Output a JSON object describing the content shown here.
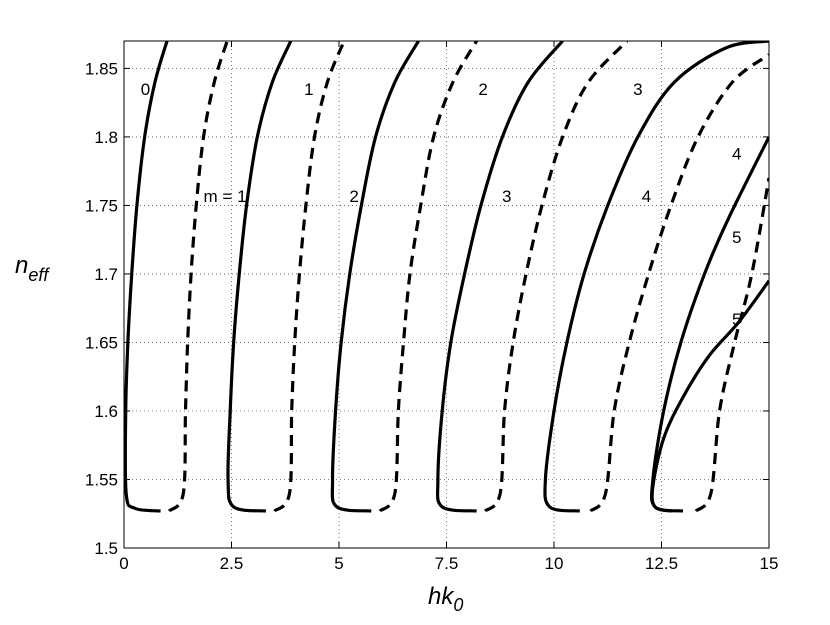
{
  "chart_data": {
    "type": "line",
    "title": "",
    "xlabel": {
      "main": "hk",
      "sub": "0"
    },
    "ylabel": {
      "main": "n",
      "sub": "eff"
    },
    "xlim": [
      0,
      15
    ],
    "ylim": [
      1.5,
      1.87
    ],
    "grid": true,
    "xticks": [
      0,
      2.5,
      5,
      7.5,
      10,
      12.5,
      15
    ],
    "xtick_labels": [
      "0",
      "2.5",
      "5",
      "7.5",
      "10",
      "12.5",
      "15"
    ],
    "yticks": [
      1.5,
      1.55,
      1.6,
      1.65,
      1.7,
      1.75,
      1.8,
      1.85
    ],
    "ytick_labels": [
      "1.5",
      "1.55",
      "1.6",
      "1.65",
      "1.7",
      "1.75",
      "1.8",
      "1.85"
    ],
    "series": [
      {
        "style": "solid",
        "points": [
          [
            0.85,
            1.527
          ],
          [
            0.25,
            1.529
          ],
          [
            0.05,
            1.54
          ],
          [
            0.04,
            1.6
          ],
          [
            0.09,
            1.65
          ],
          [
            0.18,
            1.7
          ],
          [
            0.3,
            1.75
          ],
          [
            0.48,
            1.8
          ],
          [
            0.72,
            1.84
          ],
          [
            1.0,
            1.87
          ]
        ]
      },
      {
        "style": "dashed",
        "points": [
          [
            1.05,
            1.527
          ],
          [
            1.38,
            1.54
          ],
          [
            1.43,
            1.6
          ],
          [
            1.48,
            1.65
          ],
          [
            1.56,
            1.7
          ],
          [
            1.68,
            1.75
          ],
          [
            1.85,
            1.8
          ],
          [
            2.1,
            1.84
          ],
          [
            2.4,
            1.87
          ]
        ]
      },
      {
        "style": "solid",
        "points": [
          [
            3.3,
            1.527
          ],
          [
            2.55,
            1.53
          ],
          [
            2.42,
            1.55
          ],
          [
            2.47,
            1.6
          ],
          [
            2.55,
            1.65
          ],
          [
            2.68,
            1.7
          ],
          [
            2.85,
            1.75
          ],
          [
            3.1,
            1.8
          ],
          [
            3.45,
            1.84
          ],
          [
            3.88,
            1.87
          ]
        ]
      },
      {
        "style": "dashed",
        "points": [
          [
            3.5,
            1.527
          ],
          [
            3.85,
            1.54
          ],
          [
            3.9,
            1.6
          ],
          [
            3.97,
            1.65
          ],
          [
            4.08,
            1.7
          ],
          [
            4.23,
            1.75
          ],
          [
            4.43,
            1.8
          ],
          [
            4.73,
            1.84
          ],
          [
            5.12,
            1.87
          ]
        ]
      },
      {
        "style": "solid",
        "points": [
          [
            5.75,
            1.527
          ],
          [
            4.95,
            1.53
          ],
          [
            4.85,
            1.55
          ],
          [
            4.92,
            1.6
          ],
          [
            5.05,
            1.65
          ],
          [
            5.25,
            1.7
          ],
          [
            5.52,
            1.75
          ],
          [
            5.85,
            1.8
          ],
          [
            6.3,
            1.84
          ],
          [
            6.85,
            1.87
          ]
        ]
      },
      {
        "style": "dashed",
        "points": [
          [
            5.95,
            1.527
          ],
          [
            6.3,
            1.54
          ],
          [
            6.38,
            1.6
          ],
          [
            6.5,
            1.65
          ],
          [
            6.65,
            1.7
          ],
          [
            6.9,
            1.75
          ],
          [
            7.2,
            1.8
          ],
          [
            7.65,
            1.84
          ],
          [
            8.2,
            1.87
          ]
        ]
      },
      {
        "style": "solid",
        "points": [
          [
            8.2,
            1.527
          ],
          [
            7.4,
            1.53
          ],
          [
            7.3,
            1.55
          ],
          [
            7.4,
            1.6
          ],
          [
            7.6,
            1.65
          ],
          [
            7.92,
            1.7
          ],
          [
            8.3,
            1.75
          ],
          [
            8.8,
            1.8
          ],
          [
            9.4,
            1.84
          ],
          [
            10.2,
            1.87
          ]
        ]
      },
      {
        "style": "dashed",
        "points": [
          [
            8.4,
            1.527
          ],
          [
            8.75,
            1.54
          ],
          [
            8.85,
            1.6
          ],
          [
            9.05,
            1.65
          ],
          [
            9.35,
            1.7
          ],
          [
            9.72,
            1.75
          ],
          [
            10.2,
            1.8
          ],
          [
            10.8,
            1.84
          ],
          [
            11.7,
            1.87
          ]
        ]
      },
      {
        "style": "solid",
        "points": [
          [
            10.6,
            1.527
          ],
          [
            9.9,
            1.53
          ],
          [
            9.8,
            1.55
          ],
          [
            10.0,
            1.6
          ],
          [
            10.3,
            1.65
          ],
          [
            10.7,
            1.7
          ],
          [
            11.25,
            1.75
          ],
          [
            11.95,
            1.8
          ],
          [
            12.8,
            1.84
          ],
          [
            14.0,
            1.865
          ],
          [
            15.0,
            1.87
          ]
        ]
      },
      {
        "style": "dashed",
        "points": [
          [
            10.85,
            1.527
          ],
          [
            11.2,
            1.54
          ],
          [
            11.4,
            1.6
          ],
          [
            11.75,
            1.65
          ],
          [
            12.2,
            1.7
          ],
          [
            12.72,
            1.75
          ],
          [
            13.35,
            1.8
          ],
          [
            14.15,
            1.84
          ],
          [
            15.0,
            1.86
          ]
        ]
      },
      {
        "style": "solid",
        "points": [
          [
            13.0,
            1.527
          ],
          [
            12.35,
            1.53
          ],
          [
            12.3,
            1.55
          ],
          [
            12.55,
            1.6
          ],
          [
            12.95,
            1.65
          ],
          [
            13.5,
            1.7
          ],
          [
            14.05,
            1.74
          ],
          [
            15.0,
            1.8
          ]
        ]
      },
      {
        "style": "dashed",
        "points": [
          [
            13.3,
            1.527
          ],
          [
            13.65,
            1.54
          ],
          [
            13.85,
            1.6
          ],
          [
            14.2,
            1.65
          ],
          [
            14.6,
            1.7
          ],
          [
            15.0,
            1.77
          ]
        ]
      },
      {
        "style": "solid",
        "points": [
          [
            12.75,
            1.527
          ],
          [
            12.35,
            1.53
          ],
          [
            12.3,
            1.545
          ],
          [
            12.55,
            1.58
          ],
          [
            13.0,
            1.61
          ],
          [
            13.6,
            1.64
          ],
          [
            14.3,
            1.665
          ],
          [
            15.0,
            1.695
          ]
        ]
      }
    ],
    "annotations": [
      {
        "text": "0",
        "x": 0.5,
        "y": 1.835
      },
      {
        "text": "m = 1",
        "x": 2.35,
        "y": 1.757
      },
      {
        "text": "1",
        "x": 4.3,
        "y": 1.835
      },
      {
        "text": "2",
        "x": 5.35,
        "y": 1.757
      },
      {
        "text": "2",
        "x": 8.35,
        "y": 1.835
      },
      {
        "text": "3",
        "x": 8.9,
        "y": 1.757
      },
      {
        "text": "3",
        "x": 11.95,
        "y": 1.835
      },
      {
        "text": "4",
        "x": 12.15,
        "y": 1.757
      },
      {
        "text": "4",
        "x": 14.25,
        "y": 1.788
      },
      {
        "text": "5",
        "x": 14.25,
        "y": 1.727
      },
      {
        "text": "5",
        "x": 14.25,
        "y": 1.667
      }
    ]
  }
}
